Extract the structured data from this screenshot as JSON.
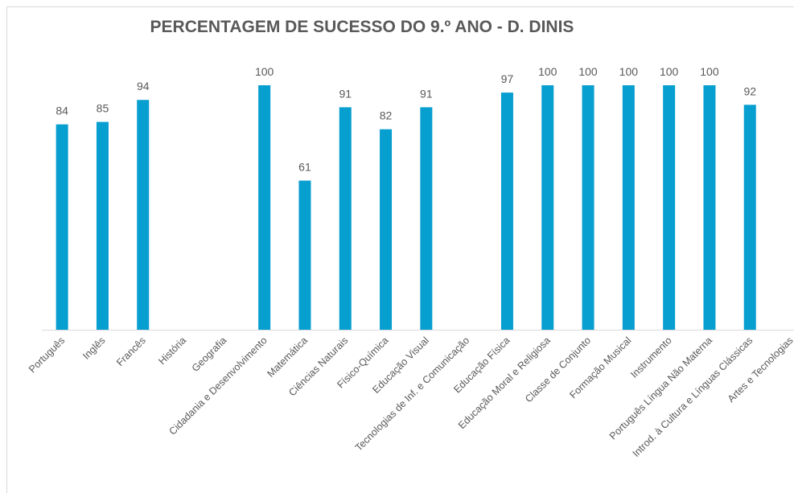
{
  "chart_data": {
    "type": "bar",
    "title": "PERCENTAGEM DE SUCESSO DO 9.º ANO - D. DINIS",
    "categories": [
      "Português",
      "Inglês",
      "Francês",
      "História",
      "Geografia",
      "Cidadania e Desenvolvimento",
      "Matemática",
      "Ciências Naturais",
      "Físico-Química",
      "Educação Visual",
      "Tecnologias de Inf. e Comunicação",
      "Educação Física",
      "Educação Moral e Religiosa",
      "Classe de Conjunto",
      "Formação Musical",
      "Instrumento",
      "Português Língua Não Materna",
      "Introd. à Cultura e Línguas Clássicas",
      "Artes e Tecnologias"
    ],
    "values": [
      84,
      85,
      94,
      null,
      null,
      100,
      61,
      91,
      82,
      91,
      null,
      97,
      100,
      100,
      100,
      100,
      100,
      92,
      null
    ],
    "color": "#079ed0",
    "ylim": [
      0,
      100
    ]
  }
}
